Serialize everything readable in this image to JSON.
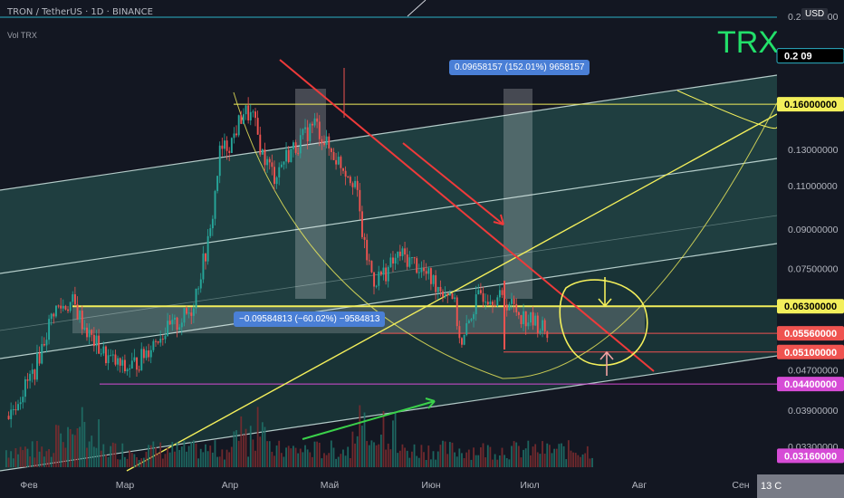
{
  "header": {
    "title": "TRON / TetherUS · 1D · BINANCE",
    "subtitle": "Vol TRX"
  },
  "symbol_label": "TRX",
  "currency_button": "USD",
  "colors": {
    "up": "#26a69a",
    "down": "#ef5350",
    "channel": "#5ab8a6",
    "yellow": "#f3ef5b",
    "red_line": "#ef3a3a",
    "green_arrow": "#3bd14a",
    "magenta": "#d64cd6"
  },
  "measurements": [
    {
      "text": "0.09658157 (152.01%) 9658157"
    },
    {
      "text": "−0.09584813 (−60.02%) −9584813"
    }
  ],
  "price_tags": [
    {
      "label": "0.2",
      "value": 0.2,
      "bg": "#000000",
      "fg": "#ffffff",
      "border": "#2bb0c5",
      "suffix": "09"
    },
    {
      "label": "0.16000000",
      "value": 0.16,
      "bg": "#f3ef5b",
      "fg": "#000000"
    },
    {
      "label": "0.06300000",
      "value": 0.063,
      "bg": "#f3ef5b",
      "fg": "#000000"
    },
    {
      "label": "0.05560000",
      "value": 0.0556,
      "bg": "#ef5350",
      "fg": "#ffffff"
    },
    {
      "label": "0.05100000",
      "value": 0.051,
      "bg": "#ef5350",
      "fg": "#ffffff"
    },
    {
      "label": "0.04400000",
      "value": 0.044,
      "bg": "#d64cd6",
      "fg": "#ffffff"
    },
    {
      "label": "0.03160000",
      "value": 0.0316,
      "bg": "#d64cd6",
      "fg": "#ffffff"
    }
  ],
  "bottom_badge": "13 С",
  "chart_data": {
    "type": "candlestick",
    "ylim": [
      0.03,
      0.24
    ],
    "log_scale": true,
    "y_ticks": [
      0.24,
      0.2,
      0.13,
      0.11,
      0.09,
      0.075,
      0.047,
      0.039,
      0.033
    ],
    "y_tick_labels": [
      "0.24000000",
      "0.20000000",
      "0.13000000",
      "0.11000000",
      "0.09000000",
      "0.07500000",
      "0.04700000",
      "0.03900000",
      "0.03300000"
    ],
    "x_ticks": [
      "Фев",
      "Мар",
      "Апр",
      "Май",
      "Июн",
      "Июл",
      "Авг",
      "Сен"
    ],
    "levels": [
      0.16,
      0.063,
      0.0556,
      0.051,
      0.044
    ],
    "price_path": [
      [
        1,
        0.038
      ],
      [
        12,
        0.047
      ],
      [
        20,
        0.062
      ],
      [
        28,
        0.064
      ],
      [
        35,
        0.055
      ],
      [
        42,
        0.05
      ],
      [
        50,
        0.047
      ],
      [
        56,
        0.049
      ],
      [
        64,
        0.055
      ],
      [
        72,
        0.058
      ],
      [
        78,
        0.062
      ],
      [
        86,
        0.088
      ],
      [
        90,
        0.128
      ],
      [
        95,
        0.135
      ],
      [
        100,
        0.155
      ],
      [
        104,
        0.15
      ],
      [
        108,
        0.127
      ],
      [
        113,
        0.115
      ],
      [
        118,
        0.126
      ],
      [
        124,
        0.135
      ],
      [
        130,
        0.147
      ],
      [
        136,
        0.13
      ],
      [
        142,
        0.12
      ],
      [
        147,
        0.112
      ],
      [
        151,
        0.082
      ],
      [
        155,
        0.071
      ],
      [
        160,
        0.074
      ],
      [
        166,
        0.08
      ],
      [
        172,
        0.077
      ],
      [
        178,
        0.072
      ],
      [
        184,
        0.068
      ],
      [
        188,
        0.067
      ],
      [
        192,
        0.052
      ],
      [
        196,
        0.061
      ],
      [
        200,
        0.067
      ],
      [
        206,
        0.066
      ],
      [
        212,
        0.064
      ],
      [
        218,
        0.06
      ],
      [
        224,
        0.058
      ],
      [
        228,
        0.056
      ]
    ]
  }
}
